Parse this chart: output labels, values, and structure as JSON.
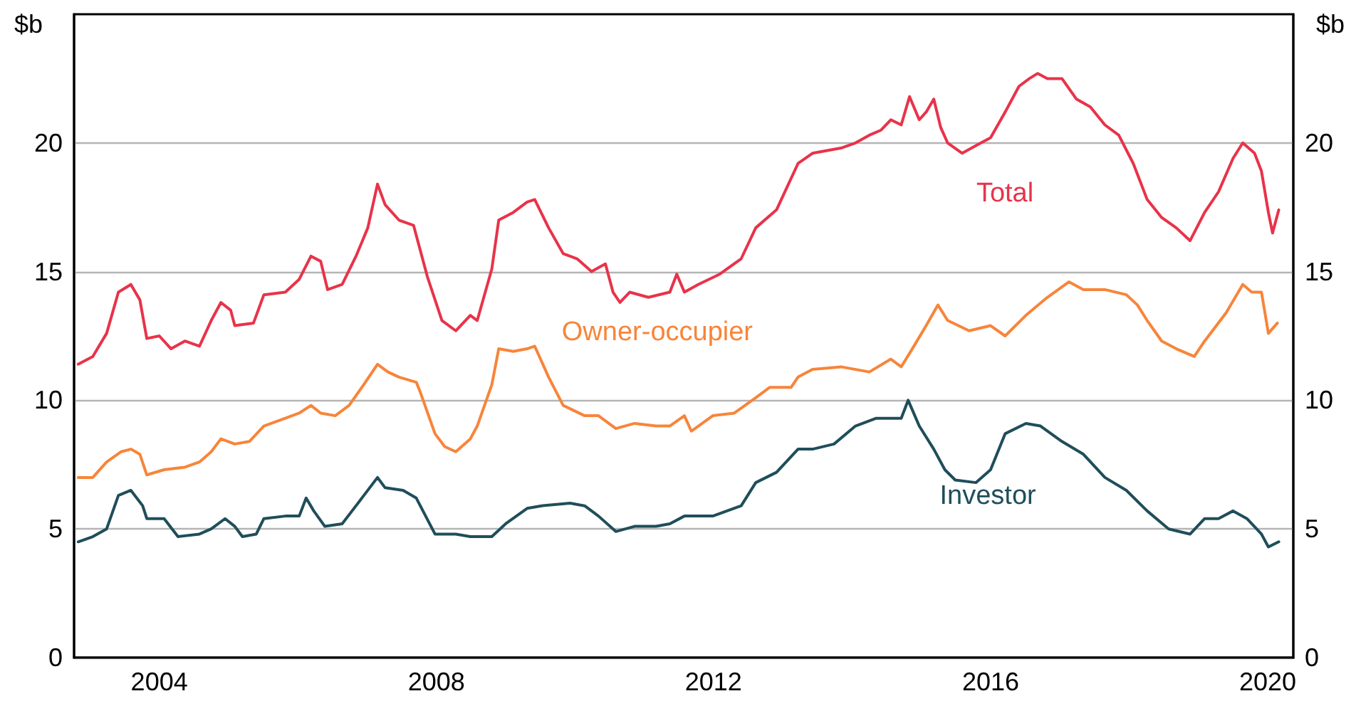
{
  "chart_data": {
    "type": "line",
    "ylabel": "$b",
    "y2label": "$b",
    "xlim": [
      2002.77,
      2020.37
    ],
    "xticks": [
      2004,
      2008,
      2012,
      2016,
      2020
    ],
    "ylim": [
      0,
      25
    ],
    "yticks": [
      0,
      5,
      10,
      15,
      20
    ],
    "y2lim": [
      0,
      25
    ],
    "y2ticks": [
      0,
      5,
      10,
      15,
      20
    ],
    "grid": "y",
    "legend": false,
    "marker": "none",
    "line_style": "solid",
    "series": [
      {
        "name": "Total",
        "color": "#e8334a",
        "x": [
          2002.83,
          2003.04,
          2003.24,
          2003.41,
          2003.59,
          2003.72,
          2003.82,
          2004.0,
          2004.17,
          2004.37,
          2004.58,
          2004.75,
          2004.89,
          2005.03,
          2005.09,
          2005.36,
          2005.51,
          2005.82,
          2006.02,
          2006.19,
          2006.33,
          2006.43,
          2006.64,
          2006.84,
          2007.01,
          2007.15,
          2007.26,
          2007.46,
          2007.67,
          2007.87,
          2008.08,
          2008.28,
          2008.49,
          2008.59,
          2008.8,
          2008.9,
          2009.11,
          2009.31,
          2009.42,
          2009.62,
          2009.83,
          2010.03,
          2010.24,
          2010.44,
          2010.55,
          2010.65,
          2010.79,
          2011.06,
          2011.37,
          2011.47,
          2011.58,
          2011.78,
          2012.09,
          2012.4,
          2012.61,
          2012.91,
          2013.22,
          2013.43,
          2013.84,
          2014.05,
          2014.25,
          2014.42,
          2014.56,
          2014.71,
          2014.83,
          2014.97,
          2015.07,
          2015.18,
          2015.28,
          2015.38,
          2015.59,
          2015.79,
          2016.0,
          2016.21,
          2016.41,
          2016.56,
          2016.68,
          2016.82,
          2017.03,
          2017.24,
          2017.44,
          2017.65,
          2017.85,
          2018.06,
          2018.26,
          2018.47,
          2018.68,
          2018.88,
          2019.09,
          2019.29,
          2019.5,
          2019.64,
          2019.81,
          2019.91,
          2020.01,
          2020.07,
          2020.16
        ],
        "values": [
          11.4,
          11.7,
          12.6,
          14.2,
          14.5,
          13.9,
          12.4,
          12.5,
          12.0,
          12.3,
          12.1,
          13.1,
          13.8,
          13.5,
          12.9,
          13.0,
          14.1,
          14.2,
          14.7,
          15.6,
          15.4,
          14.3,
          14.5,
          15.6,
          16.7,
          18.4,
          17.6,
          17.0,
          16.8,
          14.8,
          13.1,
          12.7,
          13.3,
          13.1,
          15.1,
          17.0,
          17.3,
          17.7,
          17.8,
          16.7,
          15.7,
          15.5,
          15.0,
          15.3,
          14.2,
          13.8,
          14.2,
          14.0,
          14.2,
          14.9,
          14.2,
          14.5,
          14.9,
          15.5,
          16.7,
          17.4,
          19.2,
          19.6,
          19.8,
          20.0,
          20.3,
          20.5,
          20.9,
          20.7,
          21.8,
          20.9,
          21.2,
          21.7,
          20.6,
          20.0,
          19.6,
          19.9,
          20.2,
          21.2,
          22.2,
          22.5,
          22.7,
          22.5,
          22.5,
          21.7,
          21.4,
          20.7,
          20.3,
          19.2,
          17.8,
          17.1,
          16.7,
          16.2,
          17.3,
          18.1,
          19.4,
          20.0,
          19.6,
          18.9,
          17.3,
          16.5,
          17.4
        ]
      },
      {
        "name": "Owner-occupier",
        "color": "#f7853a",
        "x": [
          2002.83,
          2003.04,
          2003.24,
          2003.45,
          2003.59,
          2003.72,
          2003.82,
          2004.07,
          2004.37,
          2004.58,
          2004.75,
          2004.89,
          2005.09,
          2005.3,
          2005.51,
          2005.82,
          2006.02,
          2006.19,
          2006.33,
          2006.54,
          2006.74,
          2006.95,
          2007.15,
          2007.3,
          2007.46,
          2007.71,
          2007.77,
          2007.98,
          2008.12,
          2008.28,
          2008.49,
          2008.59,
          2008.8,
          2008.9,
          2009.11,
          2009.31,
          2009.42,
          2009.62,
          2009.83,
          2010.14,
          2010.34,
          2010.59,
          2010.86,
          2011.17,
          2011.37,
          2011.58,
          2011.68,
          2011.99,
          2012.3,
          2012.61,
          2012.81,
          2013.12,
          2013.22,
          2013.43,
          2013.84,
          2014.25,
          2014.56,
          2014.71,
          2014.87,
          2015.07,
          2015.24,
          2015.38,
          2015.69,
          2016.0,
          2016.21,
          2016.51,
          2016.82,
          2017.13,
          2017.34,
          2017.65,
          2017.96,
          2018.12,
          2018.26,
          2018.47,
          2018.68,
          2018.94,
          2019.09,
          2019.4,
          2019.64,
          2019.77,
          2019.91,
          2020.01,
          2020.14
        ],
        "values": [
          7.0,
          7.0,
          7.6,
          8.0,
          8.1,
          7.9,
          7.1,
          7.3,
          7.4,
          7.6,
          8.0,
          8.5,
          8.3,
          8.4,
          9.0,
          9.3,
          9.5,
          9.8,
          9.5,
          9.4,
          9.8,
          10.6,
          11.4,
          11.1,
          10.9,
          10.7,
          10.3,
          8.7,
          8.2,
          8.0,
          8.5,
          9.0,
          10.6,
          12.0,
          11.9,
          12.0,
          12.1,
          10.9,
          9.8,
          9.4,
          9.4,
          8.9,
          9.1,
          9.0,
          9.0,
          9.4,
          8.8,
          9.4,
          9.5,
          10.1,
          10.5,
          10.5,
          10.9,
          11.2,
          11.3,
          11.1,
          11.6,
          11.3,
          12.0,
          12.9,
          13.7,
          13.1,
          12.7,
          12.9,
          12.5,
          13.3,
          14.0,
          14.6,
          14.3,
          14.3,
          14.1,
          13.7,
          13.1,
          12.3,
          12.0,
          11.7,
          12.3,
          13.4,
          14.5,
          14.2,
          14.2,
          12.6,
          13.0
        ]
      },
      {
        "name": "Investor",
        "color": "#1f4e5a",
        "x": [
          2002.83,
          2003.04,
          2003.24,
          2003.41,
          2003.59,
          2003.76,
          2003.82,
          2004.07,
          2004.27,
          2004.58,
          2004.75,
          2004.95,
          2005.09,
          2005.2,
          2005.4,
          2005.51,
          2005.82,
          2006.02,
          2006.12,
          2006.23,
          2006.39,
          2006.64,
          2006.84,
          2007.15,
          2007.26,
          2007.52,
          2007.71,
          2007.98,
          2008.28,
          2008.49,
          2008.8,
          2009.0,
          2009.31,
          2009.52,
          2009.93,
          2010.14,
          2010.34,
          2010.59,
          2010.86,
          2011.17,
          2011.37,
          2011.58,
          2011.99,
          2012.4,
          2012.61,
          2012.91,
          2013.22,
          2013.43,
          2013.74,
          2014.05,
          2014.35,
          2014.71,
          2014.81,
          2014.97,
          2015.18,
          2015.34,
          2015.49,
          2015.79,
          2016.0,
          2016.21,
          2016.51,
          2016.72,
          2017.03,
          2017.34,
          2017.65,
          2017.96,
          2018.26,
          2018.57,
          2018.88,
          2019.09,
          2019.29,
          2019.5,
          2019.7,
          2019.91,
          2020.01,
          2020.16
        ],
        "values": [
          4.5,
          4.7,
          5.0,
          6.3,
          6.5,
          5.9,
          5.4,
          5.4,
          4.7,
          4.8,
          5.0,
          5.4,
          5.1,
          4.7,
          4.8,
          5.4,
          5.5,
          5.5,
          6.2,
          5.7,
          5.1,
          5.2,
          5.9,
          7.0,
          6.6,
          6.5,
          6.2,
          4.8,
          4.8,
          4.7,
          4.7,
          5.2,
          5.8,
          5.9,
          6.0,
          5.9,
          5.5,
          4.9,
          5.1,
          5.1,
          5.2,
          5.5,
          5.5,
          5.9,
          6.8,
          7.2,
          8.1,
          8.1,
          8.3,
          9.0,
          9.3,
          9.3,
          10.0,
          9.0,
          8.1,
          7.3,
          6.9,
          6.8,
          7.3,
          8.7,
          9.1,
          9.0,
          8.4,
          7.9,
          7.0,
          6.5,
          5.7,
          5.0,
          4.8,
          5.4,
          5.4,
          5.7,
          5.4,
          4.8,
          4.3,
          4.5
        ]
      }
    ]
  }
}
